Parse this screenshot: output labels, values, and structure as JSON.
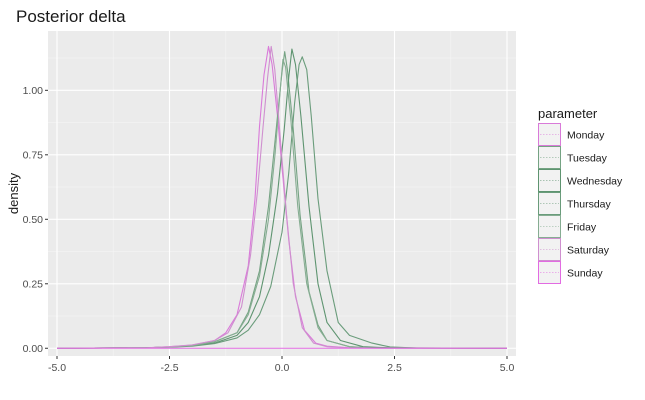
{
  "chart_data": {
    "type": "line",
    "title": "Posterior delta",
    "xlabel": "",
    "ylabel": "density",
    "xlim": [
      -5.2,
      5.2
    ],
    "ylim": [
      -0.03,
      1.23
    ],
    "x_ticks": [
      -5,
      -2.5,
      0,
      2.5,
      5
    ],
    "x_tick_labels": [
      "-5.0",
      "-2.5",
      "0.0",
      "2.5",
      "5.0"
    ],
    "y_ticks": [
      0,
      0.25,
      0.5,
      0.75,
      1.0
    ],
    "y_tick_labels": [
      "0.00",
      "0.25",
      "0.50",
      "0.75",
      "1.00"
    ],
    "grid": true,
    "legend": {
      "title": "parameter",
      "placement": "right"
    },
    "series": [
      {
        "name": "Monday",
        "color": "#d97ad9",
        "values": [
          [
            -5,
            0
          ],
          [
            -3,
            0.002
          ],
          [
            -2.5,
            0.006
          ],
          [
            -2,
            0.012
          ],
          [
            -1.5,
            0.03
          ],
          [
            -1.25,
            0.06
          ],
          [
            -1.0,
            0.13
          ],
          [
            -0.75,
            0.32
          ],
          [
            -0.6,
            0.58
          ],
          [
            -0.5,
            0.86
          ],
          [
            -0.4,
            1.06
          ],
          [
            -0.3,
            1.17
          ],
          [
            -0.22,
            1.1
          ],
          [
            -0.1,
            0.9
          ],
          [
            0.0,
            0.7
          ],
          [
            0.15,
            0.42
          ],
          [
            0.3,
            0.2
          ],
          [
            0.5,
            0.07
          ],
          [
            0.75,
            0.02
          ],
          [
            1.0,
            0.008
          ],
          [
            1.5,
            0.002
          ],
          [
            5,
            0
          ]
        ]
      },
      {
        "name": "Tuesday",
        "color": "#75a383",
        "values": [
          [
            -5,
            0
          ],
          [
            -3,
            0.002
          ],
          [
            -2.5,
            0.005
          ],
          [
            -2,
            0.01
          ],
          [
            -1.5,
            0.025
          ],
          [
            -1.0,
            0.06
          ],
          [
            -0.75,
            0.14
          ],
          [
            -0.5,
            0.3
          ],
          [
            -0.3,
            0.55
          ],
          [
            -0.1,
            0.9
          ],
          [
            0.0,
            1.07
          ],
          [
            0.06,
            1.15
          ],
          [
            0.12,
            1.08
          ],
          [
            0.25,
            0.85
          ],
          [
            0.4,
            0.52
          ],
          [
            0.6,
            0.22
          ],
          [
            0.8,
            0.09
          ],
          [
            1.0,
            0.03
          ],
          [
            1.5,
            0.006
          ],
          [
            2,
            0.002
          ],
          [
            5,
            0
          ]
        ]
      },
      {
        "name": "Wednesday",
        "color": "#5e9470",
        "values": [
          [
            -5,
            0
          ],
          [
            -3,
            0.002
          ],
          [
            -2.5,
            0.005
          ],
          [
            -2,
            0.01
          ],
          [
            -1.5,
            0.02
          ],
          [
            -1.0,
            0.05
          ],
          [
            -0.75,
            0.1
          ],
          [
            -0.5,
            0.2
          ],
          [
            -0.3,
            0.36
          ],
          [
            -0.1,
            0.6
          ],
          [
            0.05,
            0.85
          ],
          [
            0.15,
            1.05
          ],
          [
            0.22,
            1.16
          ],
          [
            0.3,
            1.1
          ],
          [
            0.42,
            0.9
          ],
          [
            0.6,
            0.55
          ],
          [
            0.8,
            0.25
          ],
          [
            1.0,
            0.1
          ],
          [
            1.3,
            0.03
          ],
          [
            1.8,
            0.006
          ],
          [
            2.5,
            0.001
          ],
          [
            5,
            0
          ]
        ]
      },
      {
        "name": "Thursday",
        "color": "#6a9c7b",
        "values": [
          [
            -5,
            0
          ],
          [
            -3,
            0.002
          ],
          [
            -2.5,
            0.004
          ],
          [
            -2,
            0.008
          ],
          [
            -1.5,
            0.018
          ],
          [
            -1.0,
            0.04
          ],
          [
            -0.75,
            0.07
          ],
          [
            -0.5,
            0.13
          ],
          [
            -0.25,
            0.24
          ],
          [
            0.0,
            0.45
          ],
          [
            0.15,
            0.68
          ],
          [
            0.28,
            0.95
          ],
          [
            0.38,
            1.1
          ],
          [
            0.45,
            1.13
          ],
          [
            0.55,
            1.08
          ],
          [
            0.65,
            0.9
          ],
          [
            0.8,
            0.58
          ],
          [
            1.0,
            0.3
          ],
          [
            1.25,
            0.1
          ],
          [
            1.5,
            0.05
          ],
          [
            2.0,
            0.02
          ],
          [
            2.4,
            0.005
          ],
          [
            3,
            0.001
          ],
          [
            5,
            0
          ]
        ]
      },
      {
        "name": "Friday",
        "color": "#86ad92",
        "values": [
          [
            -5,
            0
          ],
          [
            -3,
            0.002
          ],
          [
            -2.5,
            0.005
          ],
          [
            -2,
            0.01
          ],
          [
            -1.5,
            0.025
          ],
          [
            -1.0,
            0.06
          ],
          [
            -0.75,
            0.13
          ],
          [
            -0.5,
            0.28
          ],
          [
            -0.3,
            0.5
          ],
          [
            -0.15,
            0.76
          ],
          [
            -0.05,
            0.98
          ],
          [
            0.02,
            1.12
          ],
          [
            0.08,
            1.09
          ],
          [
            0.2,
            0.88
          ],
          [
            0.35,
            0.55
          ],
          [
            0.55,
            0.25
          ],
          [
            0.8,
            0.08
          ],
          [
            1.0,
            0.03
          ],
          [
            1.5,
            0.006
          ],
          [
            2,
            0.001
          ],
          [
            5,
            0
          ]
        ]
      },
      {
        "name": "Saturday",
        "color": "#cf8fcf",
        "values": [
          [
            -5,
            0
          ],
          [
            -3,
            0.002
          ],
          [
            -2.5,
            0.006
          ],
          [
            -2,
            0.013
          ],
          [
            -1.5,
            0.03
          ],
          [
            -1.2,
            0.06
          ],
          [
            -0.9,
            0.16
          ],
          [
            -0.7,
            0.36
          ],
          [
            -0.55,
            0.6
          ],
          [
            -0.42,
            0.86
          ],
          [
            -0.32,
            1.05
          ],
          [
            -0.24,
            1.17
          ],
          [
            -0.16,
            1.08
          ],
          [
            -0.05,
            0.84
          ],
          [
            0.1,
            0.52
          ],
          [
            0.25,
            0.25
          ],
          [
            0.45,
            0.08
          ],
          [
            0.7,
            0.02
          ],
          [
            1.0,
            0.006
          ],
          [
            1.5,
            0.001
          ],
          [
            5,
            0
          ]
        ]
      },
      {
        "name": "Sunday",
        "color": "#e26be2",
        "values": [
          [
            -5,
            0
          ],
          [
            5,
            0
          ]
        ]
      }
    ]
  }
}
